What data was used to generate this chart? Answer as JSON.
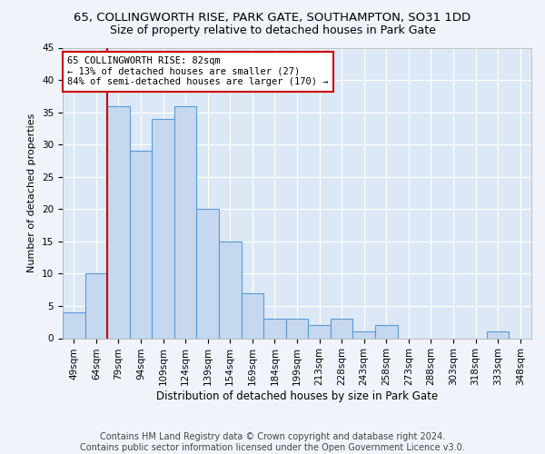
{
  "title1": "65, COLLINGWORTH RISE, PARK GATE, SOUTHAMPTON, SO31 1DD",
  "title2": "Size of property relative to detached houses in Park Gate",
  "xlabel": "Distribution of detached houses by size in Park Gate",
  "ylabel": "Number of detached properties",
  "categories": [
    "49sqm",
    "64sqm",
    "79sqm",
    "94sqm",
    "109sqm",
    "124sqm",
    "139sqm",
    "154sqm",
    "169sqm",
    "184sqm",
    "199sqm",
    "213sqm",
    "228sqm",
    "243sqm",
    "258sqm",
    "273sqm",
    "288sqm",
    "303sqm",
    "318sqm",
    "333sqm",
    "348sqm"
  ],
  "values": [
    4,
    10,
    36,
    29,
    34,
    36,
    20,
    15,
    7,
    3,
    3,
    2,
    3,
    1,
    2,
    0,
    0,
    0,
    0,
    1,
    0
  ],
  "bar_color": "#c5d8f0",
  "bar_edge_color": "#5b9bd5",
  "red_line_x": 2,
  "red_line_color": "#cc0000",
  "annotation_text_line1": "65 COLLINGWORTH RISE: 82sqm",
  "annotation_text_line2": "← 13% of detached houses are smaller (27)",
  "annotation_text_line3": "84% of semi-detached houses are larger (170) →",
  "annotation_box_color": "#ffffff",
  "annotation_box_edge_color": "#cc0000",
  "ylim": [
    0,
    45
  ],
  "yticks": [
    0,
    5,
    10,
    15,
    20,
    25,
    30,
    35,
    40,
    45
  ],
  "footer_line1": "Contains HM Land Registry data © Crown copyright and database right 2024.",
  "footer_line2": "Contains public sector information licensed under the Open Government Licence v3.0.",
  "background_color": "#dce8f5",
  "fig_background_color": "#f0f4fa",
  "grid_color": "#ffffff",
  "title1_fontsize": 9.5,
  "title2_fontsize": 9,
  "tick_fontsize": 7.5,
  "xlabel_fontsize": 8.5,
  "ylabel_fontsize": 8,
  "annotation_fontsize": 7.5,
  "footer_fontsize": 7
}
